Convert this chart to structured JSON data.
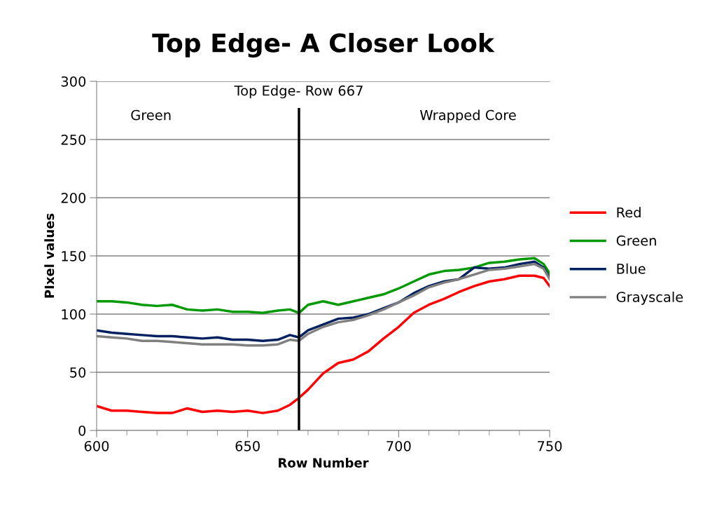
{
  "chart_data": {
    "type": "line",
    "title": "Top Edge- A Closer Look",
    "xlabel": "Row Number",
    "ylabel": "PIxel values",
    "x": [
      600,
      605,
      610,
      615,
      620,
      625,
      630,
      635,
      640,
      645,
      650,
      655,
      660,
      664,
      667,
      670,
      675,
      680,
      685,
      690,
      695,
      700,
      705,
      710,
      715,
      720,
      725,
      730,
      735,
      740,
      745,
      748,
      750
    ],
    "series": [
      {
        "name": "Red",
        "color": "#ff0000",
        "values": [
          21,
          17,
          17,
          16,
          15,
          15,
          19,
          16,
          17,
          16,
          17,
          15,
          17,
          22,
          28,
          35,
          49,
          58,
          61,
          68,
          79,
          89,
          101,
          108,
          113,
          119,
          124,
          128,
          130,
          133,
          133,
          131,
          124
        ]
      },
      {
        "name": "Green",
        "color": "#009900",
        "values": [
          111,
          111,
          110,
          108,
          107,
          108,
          104,
          103,
          104,
          102,
          102,
          101,
          103,
          104,
          101,
          108,
          111,
          108,
          111,
          114,
          117,
          122,
          128,
          134,
          137,
          138,
          140,
          144,
          145,
          147,
          148,
          143,
          135
        ]
      },
      {
        "name": "Blue",
        "color": "#002060",
        "values": [
          86,
          84,
          83,
          82,
          81,
          81,
          80,
          79,
          80,
          78,
          78,
          77,
          78,
          82,
          80,
          86,
          91,
          96,
          97,
          100,
          105,
          110,
          118,
          124,
          128,
          130,
          140,
          139,
          140,
          143,
          145,
          140,
          131
        ]
      },
      {
        "name": "Grayscale",
        "color": "#808080",
        "values": [
          81,
          80,
          79,
          77,
          77,
          76,
          75,
          74,
          74,
          74,
          73,
          73,
          74,
          78,
          77,
          83,
          89,
          93,
          95,
          99,
          104,
          110,
          116,
          123,
          127,
          130,
          134,
          138,
          139,
          141,
          143,
          139,
          130
        ]
      }
    ],
    "xlim": [
      600,
      750
    ],
    "xticks": [
      600,
      650,
      700,
      750
    ],
    "ylim": [
      0,
      300
    ],
    "yticks": [
      0,
      50,
      100,
      150,
      200,
      250,
      300
    ],
    "ref_lines": [
      {
        "axis": "x",
        "value": 667,
        "label": "Top Edge- Row 667",
        "color": "#000000"
      }
    ],
    "annotations": [
      "Green",
      "Wrapped Core"
    ],
    "grid": "y",
    "legend": "right",
    "marker": "none",
    "line_style": "solid"
  }
}
